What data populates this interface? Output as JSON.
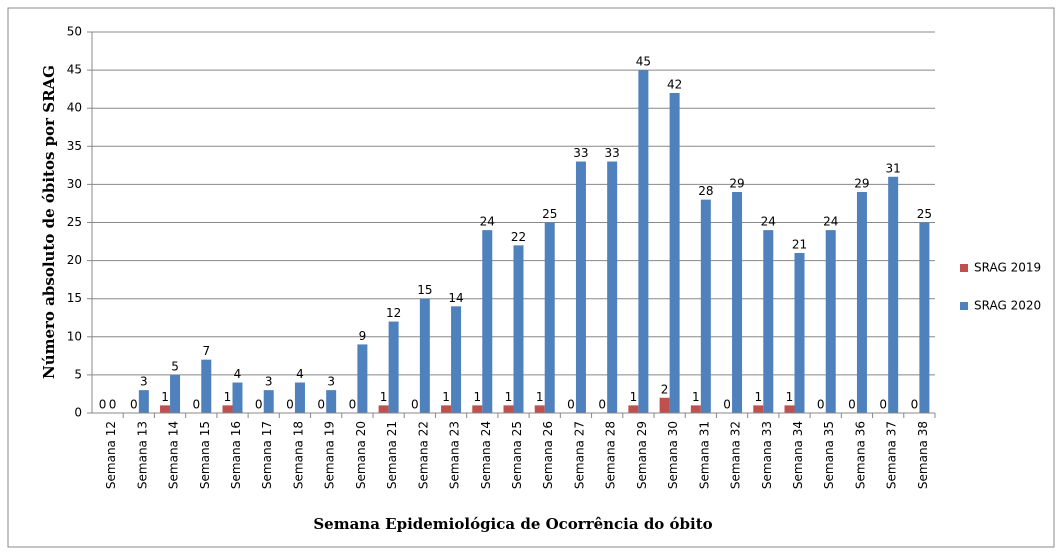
{
  "chart_data": {
    "type": "bar",
    "y_label": "Número absoluto de óbitos por SRAG",
    "x_label": "Semana Epidemiológica de Ocorrência do óbito",
    "categories": [
      "Semana 12",
      "Semana 13",
      "Semana 14",
      "Semana 15",
      "Semana 16",
      "Semana 17",
      "Semana 18",
      "Semana 19",
      "Semana 20",
      "Semana 21",
      "Semana 22",
      "Semana 23",
      "Semana 24",
      "Semana 25",
      "Semana 26",
      "Semana 27",
      "Semana 28",
      "Semana 29",
      "Semana 30",
      "Semana 31",
      "Semana 32",
      "Semana 33",
      "Semana 34",
      "Semana 35",
      "Semana 36",
      "Semana 37",
      "Semana 38"
    ],
    "series": [
      {
        "name": "SRAG 2019",
        "color": "#c0504d",
        "values": [
          0,
          0,
          1,
          0,
          1,
          0,
          0,
          0,
          0,
          1,
          0,
          1,
          1,
          1,
          1,
          0,
          0,
          1,
          2,
          1,
          0,
          1,
          1,
          0,
          0,
          0,
          0
        ]
      },
      {
        "name": "SRAG 2020",
        "color": "#4f81bd",
        "values": [
          0,
          3,
          5,
          7,
          4,
          3,
          4,
          3,
          9,
          12,
          15,
          14,
          24,
          22,
          25,
          33,
          33,
          45,
          42,
          28,
          29,
          24,
          21,
          24,
          29,
          31,
          25
        ]
      }
    ],
    "ylim": [
      0,
      50
    ],
    "yticks": [
      0,
      5,
      10,
      15,
      20,
      25,
      30,
      35,
      40,
      45,
      50
    ],
    "grid": true,
    "legend": "right"
  }
}
